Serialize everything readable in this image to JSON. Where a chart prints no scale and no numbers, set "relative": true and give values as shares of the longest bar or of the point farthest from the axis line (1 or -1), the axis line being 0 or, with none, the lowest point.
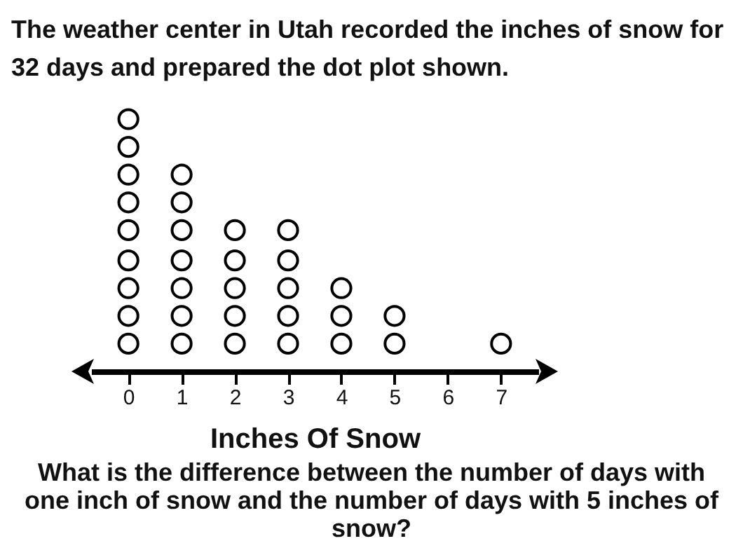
{
  "chart_data": {
    "type": "scatter",
    "title": "The weather center in Utah recorded the inches of snow for 32 days and prepared the dot plot shown.",
    "xlabel": "Inches Of Snow",
    "annotations": [
      "What is the difference between the number of days with one inch of snow and the number of days with 5 inches of snow?"
    ],
    "xlim": [
      -0.7,
      7.7
    ],
    "xticks": [
      0,
      1,
      2,
      3,
      4,
      5,
      6,
      7
    ],
    "relative": true,
    "tick_labels": "x",
    "marker": "circle",
    "series": [
      {
        "color": "#000000",
        "x": [
          0,
          0,
          0,
          0,
          0,
          0,
          0,
          0,
          0,
          1,
          1,
          1,
          1,
          1,
          1,
          1,
          2,
          2,
          2,
          2,
          2,
          3,
          3,
          3,
          3,
          3,
          4,
          4,
          4,
          5,
          5,
          7
        ],
        "values": [
          0.11,
          0.22,
          0.33,
          0.44,
          0.56,
          0.67,
          0.78,
          0.89,
          1,
          0.11,
          0.22,
          0.33,
          0.44,
          0.56,
          0.67,
          0.78,
          0.11,
          0.22,
          0.33,
          0.44,
          0.56,
          0.11,
          0.22,
          0.33,
          0.44,
          0.56,
          0.11,
          0.22,
          0.33,
          0.11,
          0.22,
          0.11
        ]
      }
    ]
  }
}
